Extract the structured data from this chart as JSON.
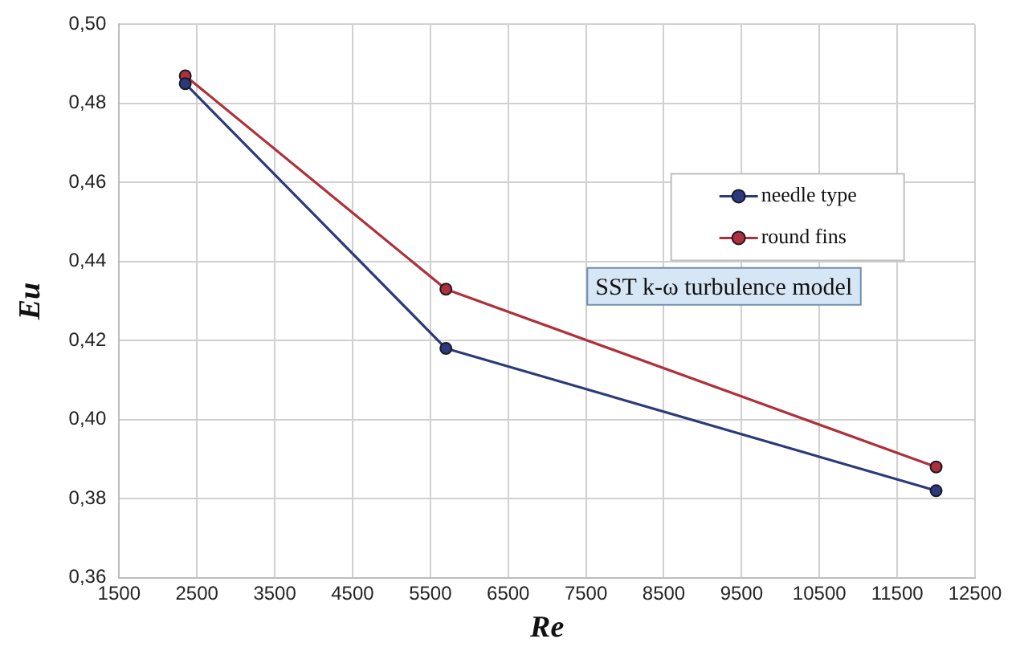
{
  "chart_data": {
    "type": "line",
    "xlabel": "Re",
    "ylabel": "Eu",
    "x": [
      2350,
      5700,
      12000
    ],
    "series": [
      {
        "name": "needle type",
        "color": "#2b3a7a",
        "values": [
          0.485,
          0.418,
          0.382
        ]
      },
      {
        "name": "round fins",
        "color": "#b0303a",
        "values": [
          0.487,
          0.433,
          0.388
        ]
      }
    ],
    "xlim": [
      1500,
      12500
    ],
    "xticks": [
      1500,
      2500,
      3500,
      4500,
      5500,
      6500,
      7500,
      8500,
      9500,
      10500,
      11500,
      12500
    ],
    "ylim": [
      0.36,
      0.5
    ],
    "yticks": [
      {
        "value": 0.36,
        "label": "0,36"
      },
      {
        "value": 0.38,
        "label": "0,38"
      },
      {
        "value": 0.4,
        "label": "0,40"
      },
      {
        "value": 0.42,
        "label": "0,42"
      },
      {
        "value": 0.44,
        "label": "0,44"
      },
      {
        "value": 0.46,
        "label": "0,46"
      },
      {
        "value": 0.48,
        "label": "0,48"
      },
      {
        "value": 0.5,
        "label": "0,50"
      }
    ],
    "annotations": [
      "SST k-ω turbulence model"
    ],
    "grid": true,
    "legend": "right",
    "marker": "circle",
    "line_style": "solid"
  }
}
